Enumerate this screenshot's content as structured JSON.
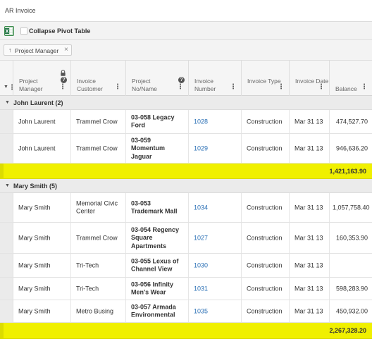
{
  "window": {
    "title": "AR Invoice"
  },
  "toolbar": {
    "collapse_label": "Collapse Pivot Table",
    "excel_icon": "excel-export-icon"
  },
  "grouping": {
    "chip_arrow": "↑",
    "chip_label": "Project Manager",
    "chip_close": "×"
  },
  "columns": [
    {
      "label": "Project Manager",
      "has_lock": true,
      "has_help": true
    },
    {
      "label": "Invoice Customer"
    },
    {
      "label": "Project No/Name",
      "has_help": true
    },
    {
      "label": "Invoice Number"
    },
    {
      "label": "Invoice Type"
    },
    {
      "label": "Invoice Date"
    },
    {
      "label": "Balance"
    }
  ],
  "groups": [
    {
      "label": "John Laurent (2)",
      "rows": [
        {
          "manager": "John Laurent",
          "customer": "Trammel Crow",
          "project": "03-058 Legacy Ford",
          "invoice": "1028",
          "type": "Construction",
          "date": "Mar 31 13",
          "balance": "474,527.70"
        },
        {
          "manager": "John Laurent",
          "customer": "Trammel Crow",
          "project": "03-059 Momentum Jaguar",
          "invoice": "1029",
          "type": "Construction",
          "date": "Mar 31 13",
          "balance": "946,636.20"
        }
      ],
      "subtotal": "1,421,163.90"
    },
    {
      "label": "Mary Smith (5)",
      "rows": [
        {
          "manager": "Mary Smith",
          "customer": "Memorial Civic Center",
          "project": "03-053 Trademark Mall",
          "invoice": "1034",
          "type": "Construction",
          "date": "Mar 31 13",
          "balance": "1,057,758.40"
        },
        {
          "manager": "Mary Smith",
          "customer": "Trammel Crow",
          "project": "03-054 Regency Square Apartments",
          "invoice": "1027",
          "type": "Construction",
          "date": "Mar 31 13",
          "balance": "160,353.90"
        },
        {
          "manager": "Mary Smith",
          "customer": "Tri-Tech",
          "project": "03-055 Lexus of Channel View",
          "invoice": "1030",
          "type": "Construction",
          "date": "Mar 31 13",
          "balance": ""
        },
        {
          "manager": "Mary Smith",
          "customer": "Tri-Tech",
          "project": "03-056 Infinity Men's Wear",
          "invoice": "1031",
          "type": "Construction",
          "date": "Mar 31 13",
          "balance": "598,283.90"
        },
        {
          "manager": "Mary Smith",
          "customer": "Metro Busing",
          "project": "03-057 Armada Environmental",
          "invoice": "1035",
          "type": "Construction",
          "date": "Mar 31 13",
          "balance": "450,932.00"
        }
      ],
      "subtotal": "2,267,328.20"
    }
  ],
  "colors": {
    "subtotal_bg": "#f0f000",
    "link": "#2a6fb5",
    "group_bg": "#ebebeb"
  }
}
